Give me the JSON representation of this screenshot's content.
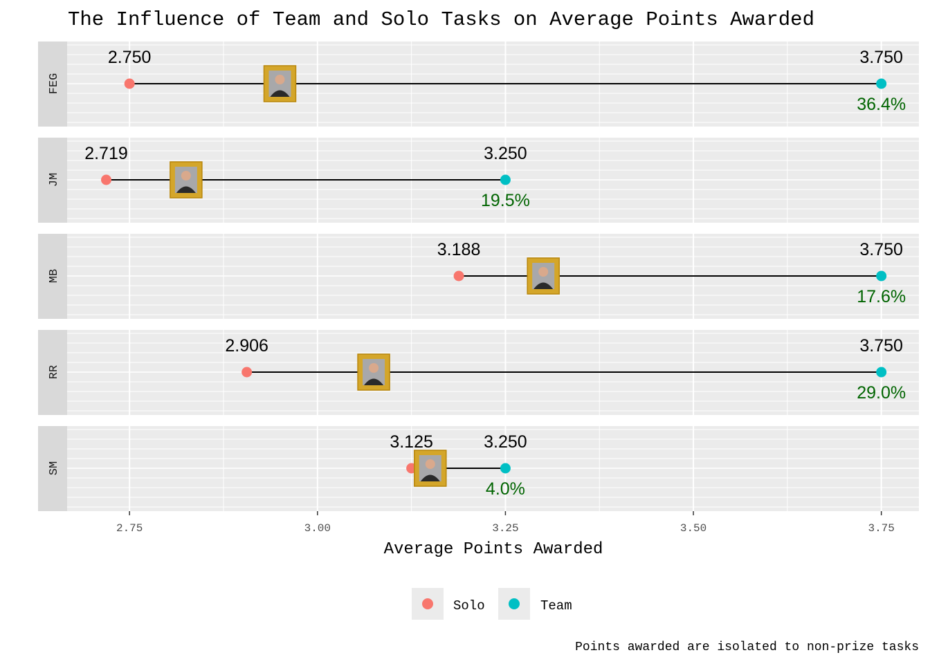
{
  "chart_data": {
    "type": "dumbbell",
    "title": "The Influence of Team and Solo Tasks on Average Points Awarded",
    "xlabel": "Average Points Awarded",
    "ylabel": "",
    "xlim": [
      2.667,
      3.8
    ],
    "x_ticks": [
      "2.75",
      "3.00",
      "3.25",
      "3.50",
      "3.75"
    ],
    "x_tick_values": [
      2.75,
      3.0,
      3.25,
      3.5,
      3.75
    ],
    "grid": true,
    "legend_position": "bottom",
    "legend": [
      {
        "name": "Solo",
        "color": "#F8766D"
      },
      {
        "name": "Team",
        "color": "#00BFC4"
      }
    ],
    "panels": [
      {
        "label": "FEG",
        "solo": 2.75,
        "team": 3.75,
        "solo_label": "2.750",
        "team_label": "3.750",
        "pct_label": "36.4%"
      },
      {
        "label": "JM",
        "solo": 2.719,
        "team": 3.25,
        "solo_label": "2.719",
        "team_label": "3.250",
        "pct_label": "19.5%"
      },
      {
        "label": "MB",
        "solo": 3.188,
        "team": 3.75,
        "solo_label": "3.188",
        "team_label": "3.750",
        "pct_label": "17.6%"
      },
      {
        "label": "RR",
        "solo": 2.906,
        "team": 3.75,
        "solo_label": "2.906",
        "team_label": "3.750",
        "pct_label": "29.0%"
      },
      {
        "label": "SM",
        "solo": 3.125,
        "team": 3.25,
        "solo_label": "3.125",
        "team_label": "3.250",
        "pct_label": "4.0%"
      }
    ],
    "caption": "Points awarded are isolated to non-prize tasks",
    "colors": {
      "solo": "#F8766D",
      "team": "#00BFC4",
      "percent": "#006400",
      "panel_bg": "#EBEBEB",
      "strip_bg": "#D9D9D9",
      "frame": "#D4A62A"
    }
  }
}
